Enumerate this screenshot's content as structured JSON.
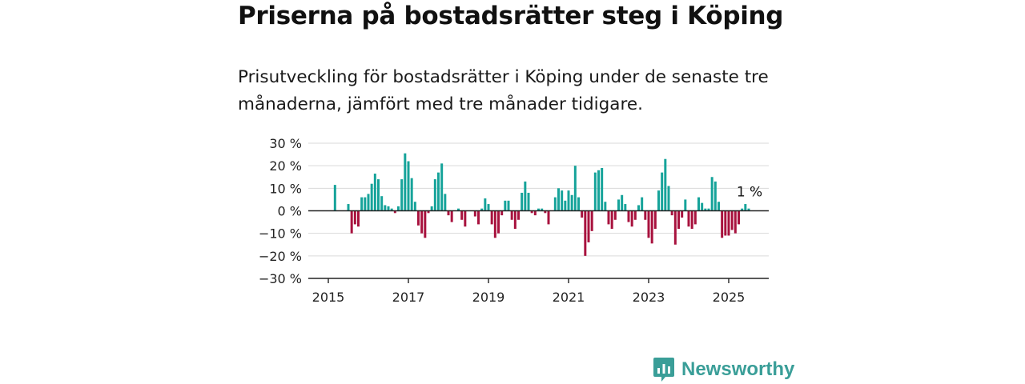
{
  "header": {
    "title": "Priserna på bostadsrätter steg i Köping",
    "subtitle": "Prisutveckling för bostadsrätter i Köping under de senaste tre månaderna, jämfört med tre månader tidigare."
  },
  "brand": {
    "name": "Newsworthy",
    "icon": "chart-bubble-icon",
    "color": "#3a9e98"
  },
  "colors": {
    "positive": "#16a39a",
    "negative": "#a8123e",
    "grid": "#d9d9d9",
    "axis": "#222222"
  },
  "chart_data": {
    "type": "bar",
    "title": "",
    "xlabel": "",
    "ylabel": "",
    "ylim": [
      -30,
      30
    ],
    "yticks": [
      30,
      20,
      10,
      0,
      -10,
      -20,
      -30
    ],
    "ytick_labels": [
      "30 %",
      "20 %",
      "10 %",
      "0 %",
      "−10 %",
      "−20 %",
      "−30 %"
    ],
    "xlim": [
      2014.5,
      2026.0
    ],
    "xticks": [
      2015,
      2017,
      2019,
      2021,
      2023,
      2025
    ],
    "xtick_labels": [
      "2015",
      "2017",
      "2019",
      "2021",
      "2023",
      "2025"
    ],
    "grid": true,
    "annotation": {
      "text": "1 %",
      "value": 1
    },
    "x_start": "2015-01",
    "x_step": "1 month",
    "values": [
      0,
      0,
      11.5,
      0,
      0,
      0,
      3,
      -10,
      -6,
      -7,
      6,
      6,
      7.5,
      12,
      16.5,
      14,
      6.5,
      2.5,
      2,
      1,
      -1,
      2,
      14,
      25.5,
      22,
      14.5,
      4,
      -6.5,
      -10,
      -12,
      -1,
      2,
      14,
      17,
      21,
      7.5,
      -2,
      -5,
      0,
      1,
      -4,
      -7,
      0,
      0,
      -2.5,
      -6,
      1,
      5.5,
      3,
      -6,
      -12,
      -10,
      -2,
      4.5,
      4.5,
      -4,
      -8,
      -4,
      8,
      13,
      8,
      -1,
      -2,
      1,
      1,
      -1,
      -6,
      0,
      6,
      10,
      9,
      4.5,
      9,
      7,
      20,
      6,
      -3,
      -20,
      -14,
      -9,
      17,
      18,
      19,
      4,
      -6,
      -8,
      -4,
      5,
      7,
      3,
      -5,
      -7,
      -4,
      2.5,
      6,
      -4,
      -12,
      -14.5,
      -8,
      9,
      17,
      23,
      11,
      -2,
      -15,
      -8,
      -3,
      5,
      -7,
      -8,
      -6,
      6,
      3.5,
      1,
      1,
      15,
      13,
      4,
      -12,
      -11,
      -11,
      -8.5,
      -10,
      -6,
      1,
      3,
      1
    ]
  }
}
